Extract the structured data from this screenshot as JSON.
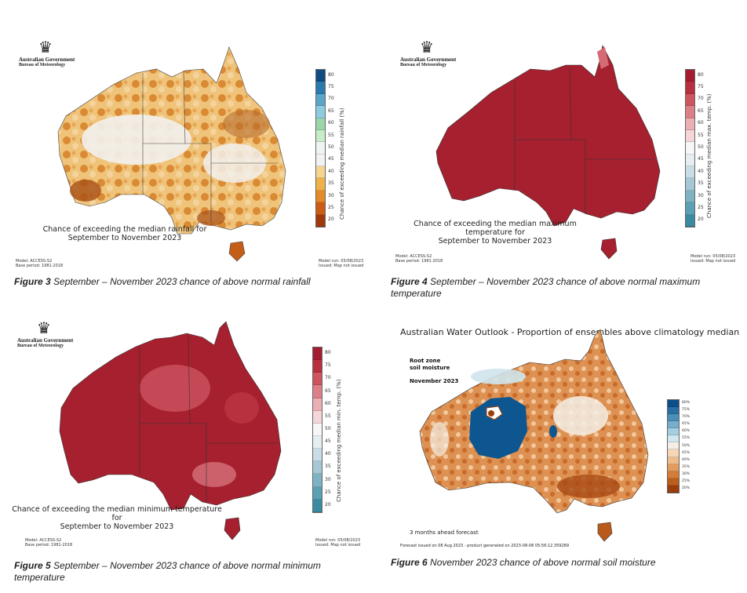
{
  "logo": {
    "government": "Australian Government",
    "bureau": "Bureau of Meteorology"
  },
  "fig3": {
    "map_title_line1": "Chance of exceeding the median rainfall for",
    "map_title_line2": "September to November 2023",
    "colorbar_label": "Chance of exceeding median rainfall (%)",
    "ticks": [
      "80",
      "75",
      "70",
      "65",
      "60",
      "55",
      "50",
      "45",
      "40",
      "35",
      "30",
      "25",
      "20"
    ],
    "model": "Model: ACCESS-S2",
    "base_period": "Base period: 1981-2018",
    "model_run": "Model run: 05/08/2023",
    "issued": "Issued: Map not issued",
    "caption_label": "Figure 3",
    "caption_text": " September – November 2023 chance of above normal rainfall",
    "colors": [
      "#0f4c81",
      "#2a7ab0",
      "#5aa5c8",
      "#8ccbe0",
      "#9ad6a8",
      "#c8ecc8",
      "#eef5f0",
      "#f2f2f2",
      "#f5d590",
      "#f1b14a",
      "#e6892a",
      "#cc5d17",
      "#a03a0c"
    ]
  },
  "fig4": {
    "map_title_line1": "Chance of exceeding the median maximum temperature for",
    "map_title_line2": "September to November 2023",
    "colorbar_label": "Chance of exceeding median max. temp. (%)",
    "ticks": [
      "80",
      "75",
      "70",
      "65",
      "60",
      "55",
      "50",
      "45",
      "40",
      "35",
      "30",
      "25",
      "20"
    ],
    "model": "Model: ACCESS-S2",
    "base_period": "Base period: 1981-2018",
    "model_run": "Model run: 05/08/2023",
    "issued": "Issued: Map not issued",
    "caption_label": "Figure 4",
    "caption_text": " September – November 2023 chance of above normal maximum temperature",
    "colors": [
      "#a51c30",
      "#b8303f",
      "#cc5560",
      "#dc8088",
      "#eab0b4",
      "#f4d6d8",
      "#f7f7f7",
      "#e6eef2",
      "#c8dde5",
      "#a5c8d4",
      "#7fb3c4",
      "#5a9fb3",
      "#3b8aa2"
    ]
  },
  "fig5": {
    "map_title_line1": "Chance of exceeding the median minimum temperature for",
    "map_title_line2": "September to November 2023",
    "colorbar_label": "Chance of exceeding median min. temp. (%)",
    "ticks": [
      "80",
      "75",
      "70",
      "65",
      "60",
      "55",
      "50",
      "45",
      "40",
      "35",
      "30",
      "25",
      "20"
    ],
    "model": "Model: ACCESS-S2",
    "base_period": "Base period: 1981-2018",
    "model_run": "Model run: 05/08/2023",
    "issued": "Issued: Map not issued",
    "caption_label": "Figure 5",
    "caption_text": " September – November 2023 chance of above normal minimum temperature",
    "colors": [
      "#a51c30",
      "#b8303f",
      "#cc5560",
      "#dc8088",
      "#eab0b4",
      "#f4d6d8",
      "#f7f7f7",
      "#e6eef2",
      "#c8dde5",
      "#a5c8d4",
      "#7fb3c4",
      "#5a9fb3",
      "#3b8aa2"
    ]
  },
  "fig6": {
    "title": "Australian Water Outlook - Proportion of ensembles above climatology median",
    "subtitle_line1": "Root zone",
    "subtitle_line2": "soil moisture",
    "month": "November 2023",
    "forecast_note": "3 months ahead forecast",
    "issued_note": "Forecast issued on 08 Aug 2023 - product generated on 2023-08-08 05:56:12.359289",
    "ticks": [
      "80%",
      "75%",
      "70%",
      "65%",
      "60%",
      "55%",
      "50%",
      "45%",
      "40%",
      "35%",
      "30%",
      "25%",
      "20%"
    ],
    "caption_label": "Figure 6",
    "caption_text": " November 2023 chance of above normal soil moisture",
    "colors": [
      "#0b4f8a",
      "#2a6fa3",
      "#4a8fb8",
      "#78aecb",
      "#a5cfe0",
      "#d2e8ee",
      "#f4efe6",
      "#f5d6b5",
      "#eebc8a",
      "#e29c5c",
      "#d37d37",
      "#bc5f1e",
      "#9c3e0c"
    ]
  }
}
